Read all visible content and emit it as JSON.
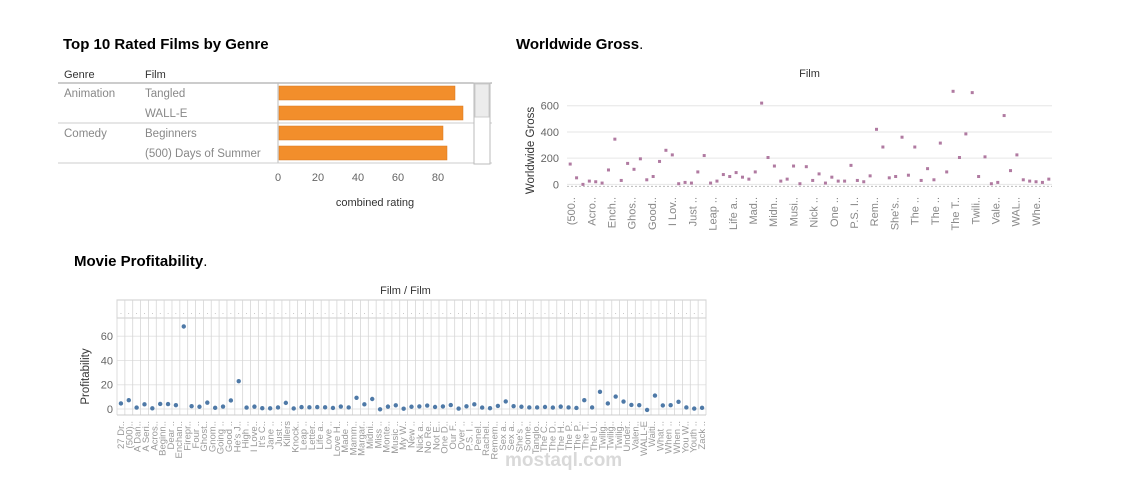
{
  "colors": {
    "bar": "#f28e2b",
    "scatter_point": "#b07aa1",
    "profit_point": "#4e79a7",
    "grid": "#e6e6e6",
    "axis_text": "#7a7a7a"
  },
  "watermark": "mostaql.com",
  "chart_data": [
    {
      "id": "top10",
      "type": "bar",
      "title": "Top 10 Rated Films by Genre",
      "headers": {
        "genre": "Genre",
        "film": "Film"
      },
      "rows": [
        {
          "genre": "Animation",
          "film": "Tangled",
          "value": 88
        },
        {
          "genre": "",
          "film": "WALL-E",
          "value": 92
        },
        {
          "genre": "Comedy",
          "film": "Beginners",
          "value": 82
        },
        {
          "genre": "",
          "film": "(500) Days of Summer",
          "value": 84
        }
      ],
      "xlabel": "combined rating",
      "xticks": [
        "0",
        "20",
        "40",
        "60",
        "80"
      ],
      "xlim": [
        0,
        100
      ]
    },
    {
      "id": "gross",
      "type": "scatter",
      "title": "Worldwide Gross",
      "title_suffix": ".",
      "header": "Film",
      "ylabel": "Worldwide Gross",
      "ylim": [
        -20,
        720
      ],
      "yticks": [
        "0",
        "200",
        "400",
        "600"
      ],
      "xlabels": [
        "(500..",
        "Acro..",
        "Ench..",
        "Ghos..",
        "Good..",
        "I Lov..",
        "Just ..",
        "Leap ..",
        "Life a..",
        "Mad..",
        "Midn..",
        "Musi..",
        "Nick ..",
        "One ..",
        "P.S. I..",
        "Rem..",
        "She's..",
        "The ..",
        "The ..",
        "The T..",
        "Twili..",
        "Vale..",
        "WAL..",
        "Whe.."
      ],
      "values": [
        155,
        50,
        0,
        25,
        20,
        10,
        110,
        345,
        30,
        160,
        115,
        195,
        35,
        60,
        175,
        260,
        225,
        5,
        15,
        10,
        95,
        220,
        10,
        25,
        75,
        60,
        90,
        55,
        40,
        95,
        620,
        205,
        140,
        25,
        40,
        140,
        5,
        135,
        30,
        80,
        10,
        55,
        25,
        25,
        145,
        30,
        20,
        65,
        420,
        285,
        50,
        60,
        360,
        70,
        285,
        30,
        120,
        35,
        315,
        95,
        710,
        205,
        385,
        700,
        60,
        210,
        5,
        15,
        525,
        105,
        225,
        35,
        25,
        20,
        15,
        40
      ]
    },
    {
      "id": "profit",
      "type": "scatter",
      "title": "Movie Profitability",
      "title_suffix": ".",
      "header": "Film / Film",
      "ylabel": "Profitability",
      "ylim": [
        -5,
        75
      ],
      "yticks": [
        "0",
        "20",
        "40",
        "60"
      ],
      "xlabels": [
        "27 Dr..",
        "(500)..",
        "A Dan..",
        "A Seri..",
        "Acros..",
        "Beginn..",
        "Dear ..",
        "Enchan..",
        "Firepr..",
        "Four ..",
        "Ghost..",
        "Gnom..",
        "Going ..",
        "Good ..",
        "He's J..",
        "High ..",
        "I Love..",
        "It's C..",
        "Jane ..",
        "Just ..",
        "Killers",
        "Knock..",
        "Leap ..",
        "Letter..",
        "Life a..",
        "Love ..",
        "Love H..",
        "Made ..",
        "Mamm..",
        "Margar..",
        "Midni..",
        "Miss ..",
        "Monte..",
        "Music ..",
        "My W..",
        "New ..",
        "Nick a..",
        "No Re..",
        "Not E..",
        "One D..",
        "Our F..",
        "Over ..",
        "P.S. I ..",
        "Penel..",
        "Rachel..",
        "Remem..",
        "Sex a..",
        "Sex a..",
        "She's ..",
        "Some..",
        "Tanglo..",
        "The C..",
        "The D..",
        "The H..",
        "The P..",
        "The P..",
        "The T..",
        "The U..",
        "Twilig..",
        "Twilig..",
        "Twilig..",
        "Under..",
        "Valen..",
        "WALL-E",
        "Waiti..",
        "What ..",
        "When ..",
        "When ..",
        "You W..",
        "Youth ..",
        "Zack .."
      ],
      "values": [
        4.5,
        7.2,
        1.1,
        3.8,
        0.5,
        4.1,
        4.0,
        3.1,
        68.0,
        2.3,
        1.8,
        5.2,
        0.9,
        2.0,
        7.0,
        22.9,
        1.1,
        1.9,
        0.6,
        0.5,
        1.2,
        5.0,
        0.4,
        1.5,
        1.3,
        1.5,
        1.3,
        0.8,
        2.0,
        1.2,
        9.2,
        3.8,
        8.2,
        -0.3,
        1.9,
        3.0,
        0.2,
        1.8,
        2.1,
        2.8,
        1.6,
        2.1,
        3.2,
        0.3,
        2.2,
        3.8,
        1.1,
        0.6,
        2.5,
        6.2,
        2.3,
        1.8,
        1.2,
        1.2,
        1.6,
        1.1,
        1.9,
        1.2,
        0.8,
        7.2,
        1.2,
        14.1,
        4.5,
        10.2,
        6.1,
        3.3,
        3.1,
        -0.8,
        11.0,
        2.9,
        3.1,
        5.9,
        1.2,
        0.3,
        0.9
      ]
    }
  ]
}
